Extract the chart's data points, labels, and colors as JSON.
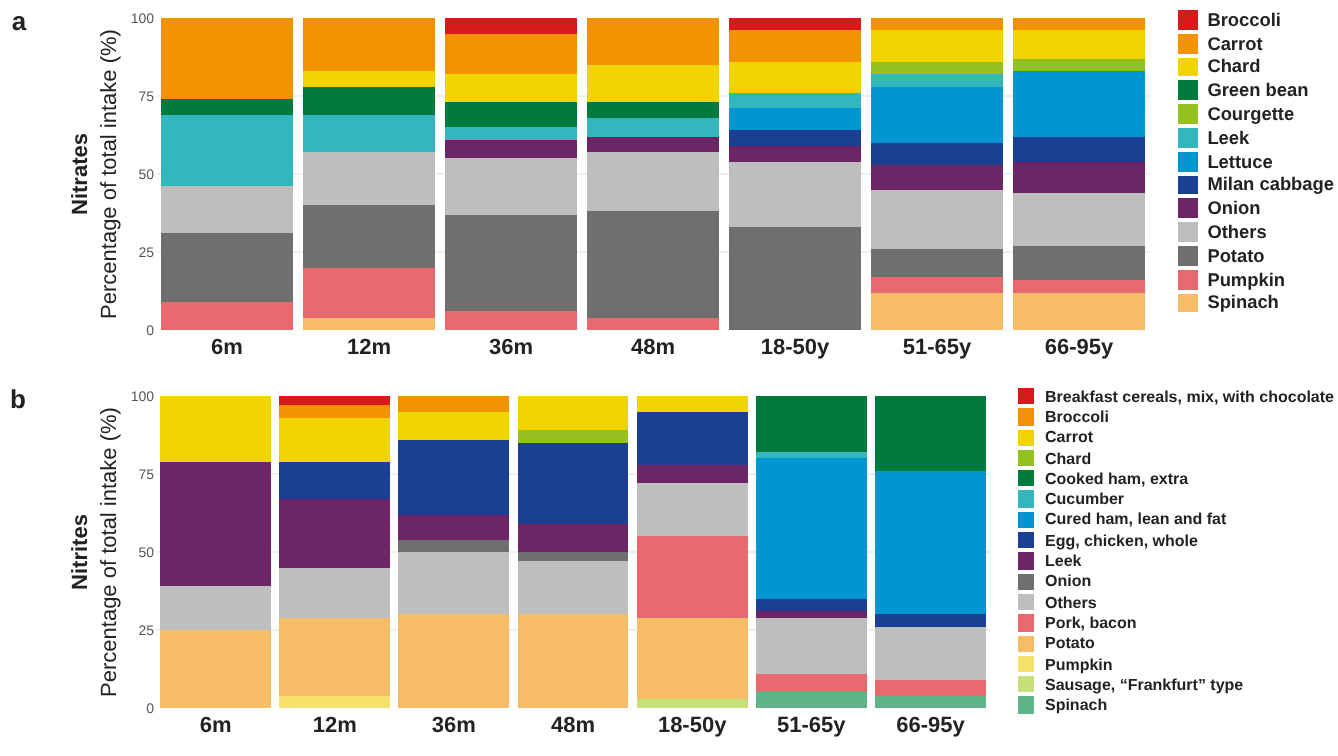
{
  "chart_data": [
    {
      "type": "bar",
      "title": "a",
      "ylabel": "Nitrates\nPercentage of total intake (%)",
      "stacked": true,
      "grid": "y",
      "legend": "right",
      "ylim": [
        0,
        100
      ],
      "yticks": [
        0,
        25,
        50,
        75,
        100
      ],
      "categories": [
        "6m",
        "12m",
        "36m",
        "48m",
        "18-50y",
        "51-65y",
        "66-95y"
      ],
      "series": [
        {
          "name": "Spinach",
          "color": "#f6bc66",
          "values": [
            0,
            4,
            0,
            0,
            0,
            12,
            12
          ]
        },
        {
          "name": "Pumpkin",
          "color": "#e8696e",
          "values": [
            9,
            16,
            6,
            4,
            0,
            5,
            4
          ]
        },
        {
          "name": "Potato",
          "color": "#6f6f6f",
          "values": [
            22,
            20,
            31,
            34,
            33,
            9,
            11
          ]
        },
        {
          "name": "Others",
          "color": "#bebebe",
          "values": [
            15,
            17,
            18,
            19,
            21,
            19,
            17
          ]
        },
        {
          "name": "Onion",
          "color": "#6c2566",
          "values": [
            0,
            0,
            6,
            5,
            5,
            8,
            10
          ]
        },
        {
          "name": "Milan cabbage",
          "color": "#1b3f93",
          "values": [
            0,
            0,
            0,
            0,
            5,
            7,
            8
          ]
        },
        {
          "name": "Lettuce",
          "color": "#0096d1",
          "values": [
            0,
            0,
            0,
            0,
            7,
            18,
            21
          ]
        },
        {
          "name": "Leek",
          "color": "#34b6bd",
          "values": [
            23,
            12,
            4,
            6,
            5,
            4,
            0
          ]
        },
        {
          "name": "Courgette",
          "color": "#95c11f",
          "values": [
            0,
            0,
            0,
            0,
            0,
            4,
            4
          ]
        },
        {
          "name": "Green bean",
          "color": "#007a3d",
          "values": [
            5,
            9,
            8,
            5,
            0,
            0,
            0
          ]
        },
        {
          "name": "Chard",
          "color": "#f0d400",
          "values": [
            0,
            5,
            9,
            12,
            10,
            10,
            9
          ]
        },
        {
          "name": "Carrot",
          "color": "#f39200",
          "values": [
            26,
            17,
            13,
            15,
            10,
            4,
            4
          ]
        },
        {
          "name": "Broccoli",
          "color": "#d7191c",
          "values": [
            0,
            0,
            5,
            0,
            4,
            0,
            0
          ]
        }
      ]
    },
    {
      "type": "bar",
      "title": "b",
      "ylabel": "Nitrites\nPercentage of total intake (%)",
      "stacked": true,
      "grid": "y",
      "legend": "right",
      "ylim": [
        0,
        100
      ],
      "yticks": [
        0,
        25,
        50,
        75,
        100
      ],
      "categories": [
        "6m",
        "12m",
        "36m",
        "48m",
        "18-50y",
        "51-65y",
        "66-95y"
      ],
      "series": [
        {
          "name": "Spinach",
          "color": "#5fb48a",
          "values": [
            0,
            0,
            0,
            0,
            0,
            5,
            4
          ]
        },
        {
          "name": "Sausage, “Frankfurt” type",
          "color": "#c5e07a",
          "values": [
            0,
            0,
            0,
            0,
            3,
            0,
            0
          ]
        },
        {
          "name": "Pumpkin",
          "color": "#f5e06a",
          "values": [
            0,
            4,
            0,
            0,
            0,
            0,
            0
          ]
        },
        {
          "name": "Potato",
          "color": "#f6bc66",
          "values": [
            25,
            25,
            30,
            30,
            26,
            0,
            0
          ]
        },
        {
          "name": "Pork, bacon",
          "color": "#e8696e",
          "values": [
            0,
            0,
            0,
            0,
            26,
            6,
            5
          ]
        },
        {
          "name": "Others",
          "color": "#bebebe",
          "values": [
            14,
            16,
            20,
            17,
            17,
            18,
            17
          ]
        },
        {
          "name": "Onion",
          "color": "#6f6f6f",
          "values": [
            0,
            0,
            4,
            3,
            0,
            0,
            0
          ]
        },
        {
          "name": "Leek",
          "color": "#6c2566",
          "values": [
            40,
            22,
            8,
            9,
            6,
            2,
            0
          ]
        },
        {
          "name": "Egg, chicken, whole",
          "color": "#1b3f93",
          "values": [
            0,
            12,
            24,
            26,
            17,
            4,
            4
          ]
        },
        {
          "name": "Cured ham, lean and fat",
          "color": "#0096d1",
          "values": [
            0,
            0,
            0,
            0,
            0,
            45,
            46
          ]
        },
        {
          "name": "Cucumber",
          "color": "#34b6bd",
          "values": [
            0,
            0,
            0,
            0,
            0,
            2,
            0
          ]
        },
        {
          "name": "Cooked ham, extra",
          "color": "#007a3d",
          "values": [
            0,
            0,
            0,
            0,
            0,
            18,
            24
          ]
        },
        {
          "name": "Chard",
          "color": "#95c11f",
          "values": [
            0,
            0,
            0,
            4,
            0,
            0,
            0
          ]
        },
        {
          "name": "Carrot",
          "color": "#f0d400",
          "values": [
            21,
            14,
            9,
            11,
            5,
            0,
            0
          ]
        },
        {
          "name": "Broccoli",
          "color": "#f39200",
          "values": [
            0,
            4,
            5,
            0,
            0,
            0,
            0
          ]
        },
        {
          "name": "Breakfast cereals, mix, with chocolate",
          "color": "#d7191c",
          "values": [
            0,
            3,
            0,
            0,
            0,
            0,
            0
          ]
        }
      ]
    }
  ]
}
